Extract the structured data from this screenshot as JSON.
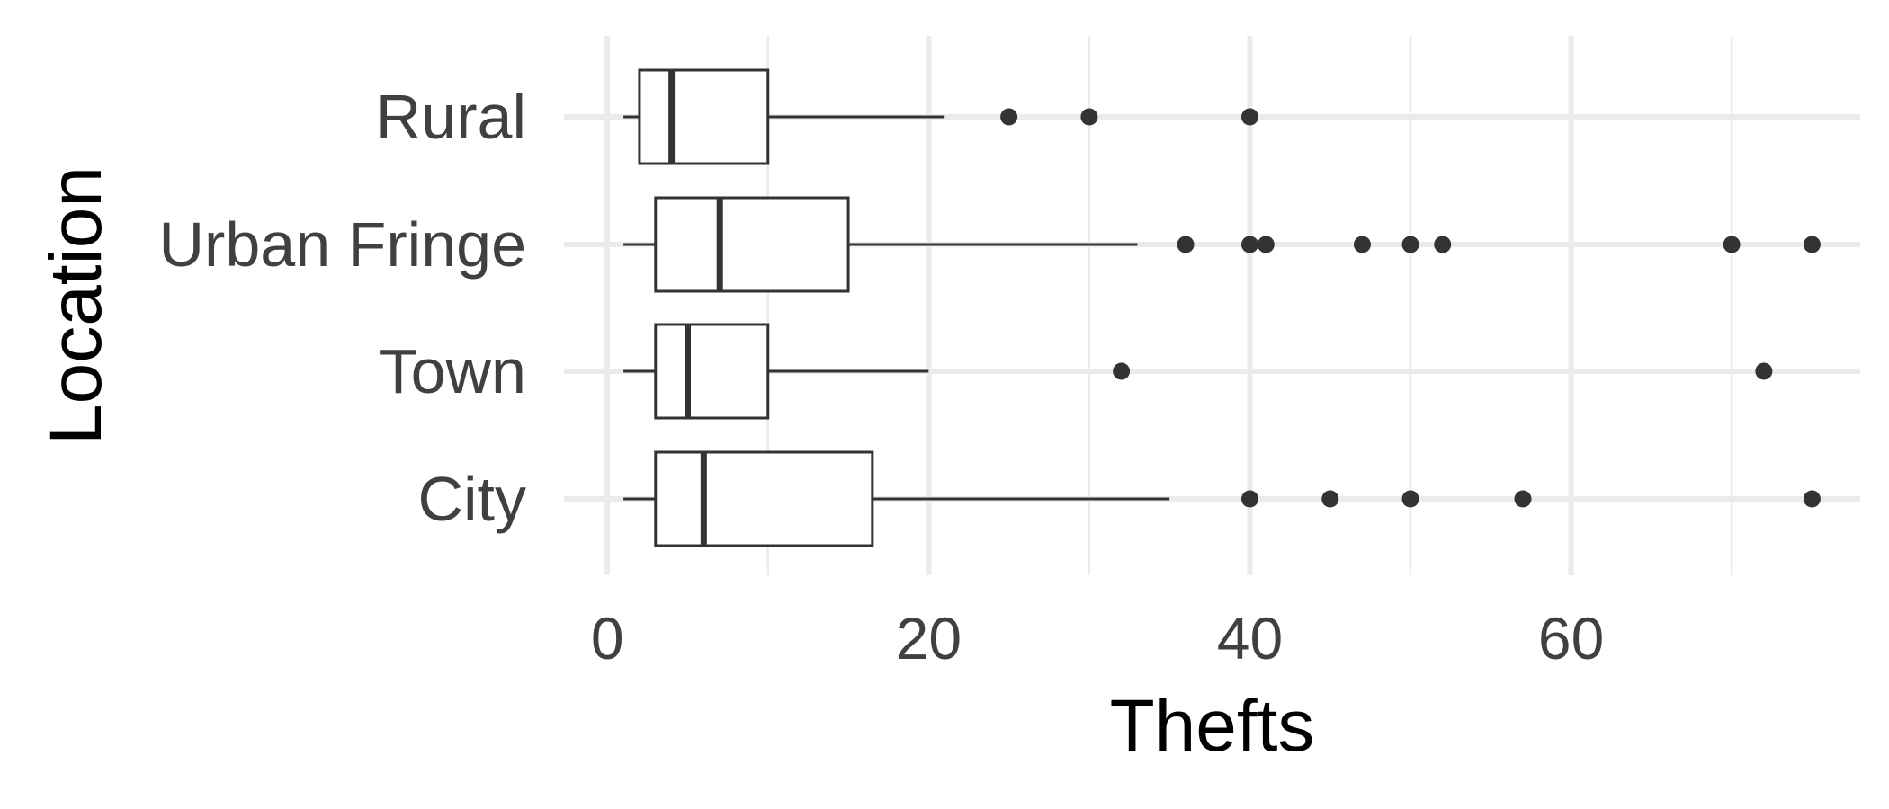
{
  "chart_data": {
    "type": "boxplot",
    "orientation": "horizontal",
    "title": "",
    "xlabel": "Thefts",
    "ylabel": "Location",
    "xlim": [
      -2.7,
      78
    ],
    "x_ticks": [
      0,
      20,
      40,
      60
    ],
    "x_minor_ticks": [
      10,
      30,
      50,
      70
    ],
    "grid": true,
    "categories": [
      "Rural",
      "Urban Fringe",
      "Town",
      "City"
    ],
    "boxes": [
      {
        "category": "Rural",
        "whisker_low": 1,
        "q1": 2,
        "median": 4,
        "q3": 10,
        "whisker_high": 21,
        "outliers": [
          25,
          30,
          40
        ]
      },
      {
        "category": "Urban Fringe",
        "whisker_low": 1,
        "q1": 3,
        "median": 7,
        "q3": 15,
        "whisker_high": 33,
        "outliers": [
          36,
          40,
          41,
          47,
          50,
          52,
          70,
          75
        ]
      },
      {
        "category": "Town",
        "whisker_low": 1,
        "q1": 3,
        "median": 5,
        "q3": 10,
        "whisker_high": 20,
        "outliers": [
          32,
          72
        ]
      },
      {
        "category": "City",
        "whisker_low": 1,
        "q1": 3,
        "median": 6,
        "q3": 16.5,
        "whisker_high": 35,
        "outliers": [
          40,
          45,
          50,
          57,
          75
        ]
      }
    ],
    "colors": {
      "grid": "#ebebeb",
      "box_stroke": "#333333",
      "box_fill": "#ffffff",
      "outlier": "#333333",
      "tick_text": "#404040",
      "title_text": "#000000"
    }
  }
}
